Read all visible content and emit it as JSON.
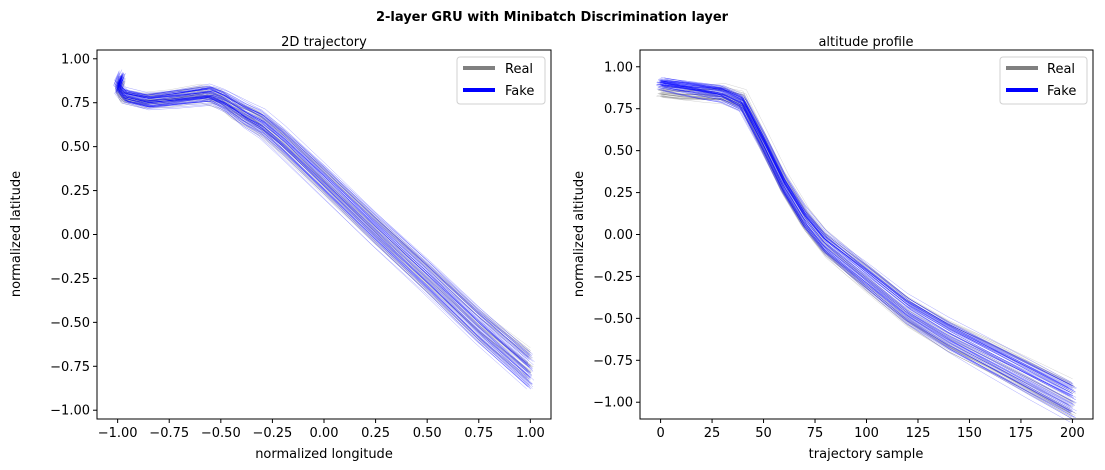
{
  "figure": {
    "suptitle": "2-layer GRU with Minibatch Discrimination layer"
  },
  "colors": {
    "real": "#808080",
    "fake": "#0000ff",
    "axis": "#000000"
  },
  "chart_data": [
    {
      "type": "line",
      "title": "2D trajectory",
      "xlabel": "normalized longitude",
      "ylabel": "normalized latitude",
      "xlim": [
        -1.1,
        1.1
      ],
      "ylim": [
        -1.05,
        1.05
      ],
      "xticks": [
        -1.0,
        -0.75,
        -0.5,
        -0.25,
        0.0,
        0.25,
        0.5,
        0.75,
        1.0
      ],
      "xtick_labels": [
        "−1.00",
        "−0.75",
        "−0.50",
        "−0.25",
        "0.00",
        "0.25",
        "0.50",
        "0.75",
        "1.00"
      ],
      "yticks": [
        1.0,
        0.75,
        0.5,
        0.25,
        0.0,
        -0.25,
        -0.5,
        -0.75,
        -1.0
      ],
      "ytick_labels": [
        "1.00",
        "0.75",
        "0.50",
        "0.25",
        "0.00",
        "−0.25",
        "−0.50",
        "−0.75",
        "−1.00"
      ],
      "grid": false,
      "legend_position": "top-right",
      "legend": [
        "Real",
        "Fake"
      ],
      "series": [
        {
          "name": "Real",
          "color": "#808080",
          "representative_path": {
            "x": [
              -0.98,
              -1.0,
              -0.98,
              -0.88,
              -0.75,
              -0.6,
              -0.5,
              -0.45,
              -0.4,
              -0.35,
              -0.3,
              -0.2,
              0.0,
              0.25,
              0.5,
              0.75,
              1.0
            ],
            "y": [
              0.88,
              0.83,
              0.78,
              0.76,
              0.77,
              0.8,
              0.77,
              0.72,
              0.69,
              0.66,
              0.62,
              0.52,
              0.3,
              0.02,
              -0.25,
              -0.52,
              -0.75
            ]
          }
        },
        {
          "name": "Fake",
          "color": "#0000ff",
          "representative_path": {
            "x": [
              -0.98,
              -1.0,
              -0.96,
              -0.85,
              -0.7,
              -0.55,
              -0.48,
              -0.43,
              -0.38,
              -0.3,
              -0.2,
              0.0,
              0.25,
              0.5,
              0.75,
              1.0
            ],
            "y": [
              0.9,
              0.84,
              0.79,
              0.76,
              0.78,
              0.8,
              0.76,
              0.72,
              0.68,
              0.63,
              0.53,
              0.31,
              0.03,
              -0.24,
              -0.52,
              -0.78
            ]
          }
        }
      ]
    },
    {
      "type": "line",
      "title": "altitude profile",
      "xlabel": "trajectory sample",
      "ylabel": "normalized altitude",
      "xlim": [
        -10,
        210
      ],
      "ylim": [
        -1.1,
        1.1
      ],
      "xticks": [
        0,
        25,
        50,
        75,
        100,
        125,
        150,
        175,
        200
      ],
      "xtick_labels": [
        "0",
        "25",
        "50",
        "75",
        "100",
        "125",
        "150",
        "175",
        "200"
      ],
      "yticks": [
        1.0,
        0.75,
        0.5,
        0.25,
        0.0,
        -0.25,
        -0.5,
        -0.75,
        -1.0
      ],
      "ytick_labels": [
        "1.00",
        "0.75",
        "0.50",
        "0.25",
        "0.00",
        "−0.25",
        "−0.50",
        "−0.75",
        "−1.00"
      ],
      "grid": false,
      "legend_position": "top-right",
      "legend": [
        "Real",
        "Fake"
      ],
      "series": [
        {
          "name": "Real",
          "color": "#808080",
          "representative_path": {
            "x": [
              0,
              10,
              20,
              30,
              40,
              50,
              60,
              70,
              80,
              90,
              100,
              120,
              140,
              160,
              180,
              200
            ],
            "y": [
              0.85,
              0.84,
              0.84,
              0.84,
              0.8,
              0.55,
              0.3,
              0.1,
              -0.05,
              -0.15,
              -0.25,
              -0.45,
              -0.6,
              -0.72,
              -0.85,
              -0.98
            ]
          }
        },
        {
          "name": "Fake",
          "color": "#0000ff",
          "representative_path": {
            "x": [
              0,
              10,
              20,
              30,
              40,
              50,
              60,
              70,
              80,
              90,
              100,
              120,
              140,
              160,
              180,
              200
            ],
            "y": [
              0.9,
              0.88,
              0.86,
              0.84,
              0.78,
              0.55,
              0.3,
              0.1,
              -0.05,
              -0.15,
              -0.25,
              -0.45,
              -0.6,
              -0.73,
              -0.86,
              -0.99
            ]
          }
        }
      ]
    }
  ]
}
